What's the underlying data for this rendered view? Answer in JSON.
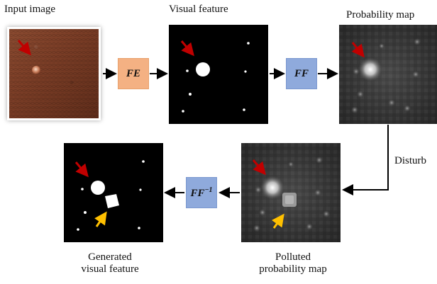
{
  "labels": {
    "input_image": "Input image",
    "visual_feature": "Visual feature",
    "probability_map": "Probability map",
    "disturb": "Disturb",
    "generated_line1": "Generated",
    "generated_line2": "visual feature",
    "polluted_line1": "Polluted",
    "polluted_line2": "probability map"
  },
  "blocks": {
    "fe": "FE",
    "ff": "FF",
    "ff_inv": "FF",
    "ff_inv_sup": "−1"
  },
  "colors": {
    "fe_block": "#f4b183",
    "ff_block": "#8faadc",
    "red_arrow": "#c00000",
    "yellow_arrow": "#ffc000",
    "connector": "#000000"
  }
}
